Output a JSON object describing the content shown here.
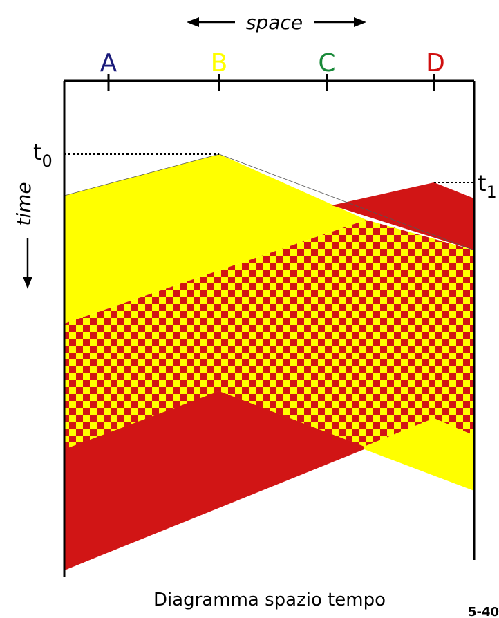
{
  "axis_labels": {
    "space": "space",
    "time": "time"
  },
  "nodes": [
    {
      "label": "A",
      "color": "#1a1a7a"
    },
    {
      "label": "B",
      "color": "#ffff00"
    },
    {
      "label": "C",
      "color": "#1a8a3a"
    },
    {
      "label": "D",
      "color": "#d01010"
    }
  ],
  "time_markers": {
    "t0": {
      "base": "t",
      "sub": "0"
    },
    "t1": {
      "base": "t",
      "sub": "1"
    }
  },
  "caption": "Diagramma spazio tempo",
  "page_number": "5-40",
  "colors": {
    "yellow": "#ffff00",
    "red": "#d11515",
    "line": "#000000"
  }
}
